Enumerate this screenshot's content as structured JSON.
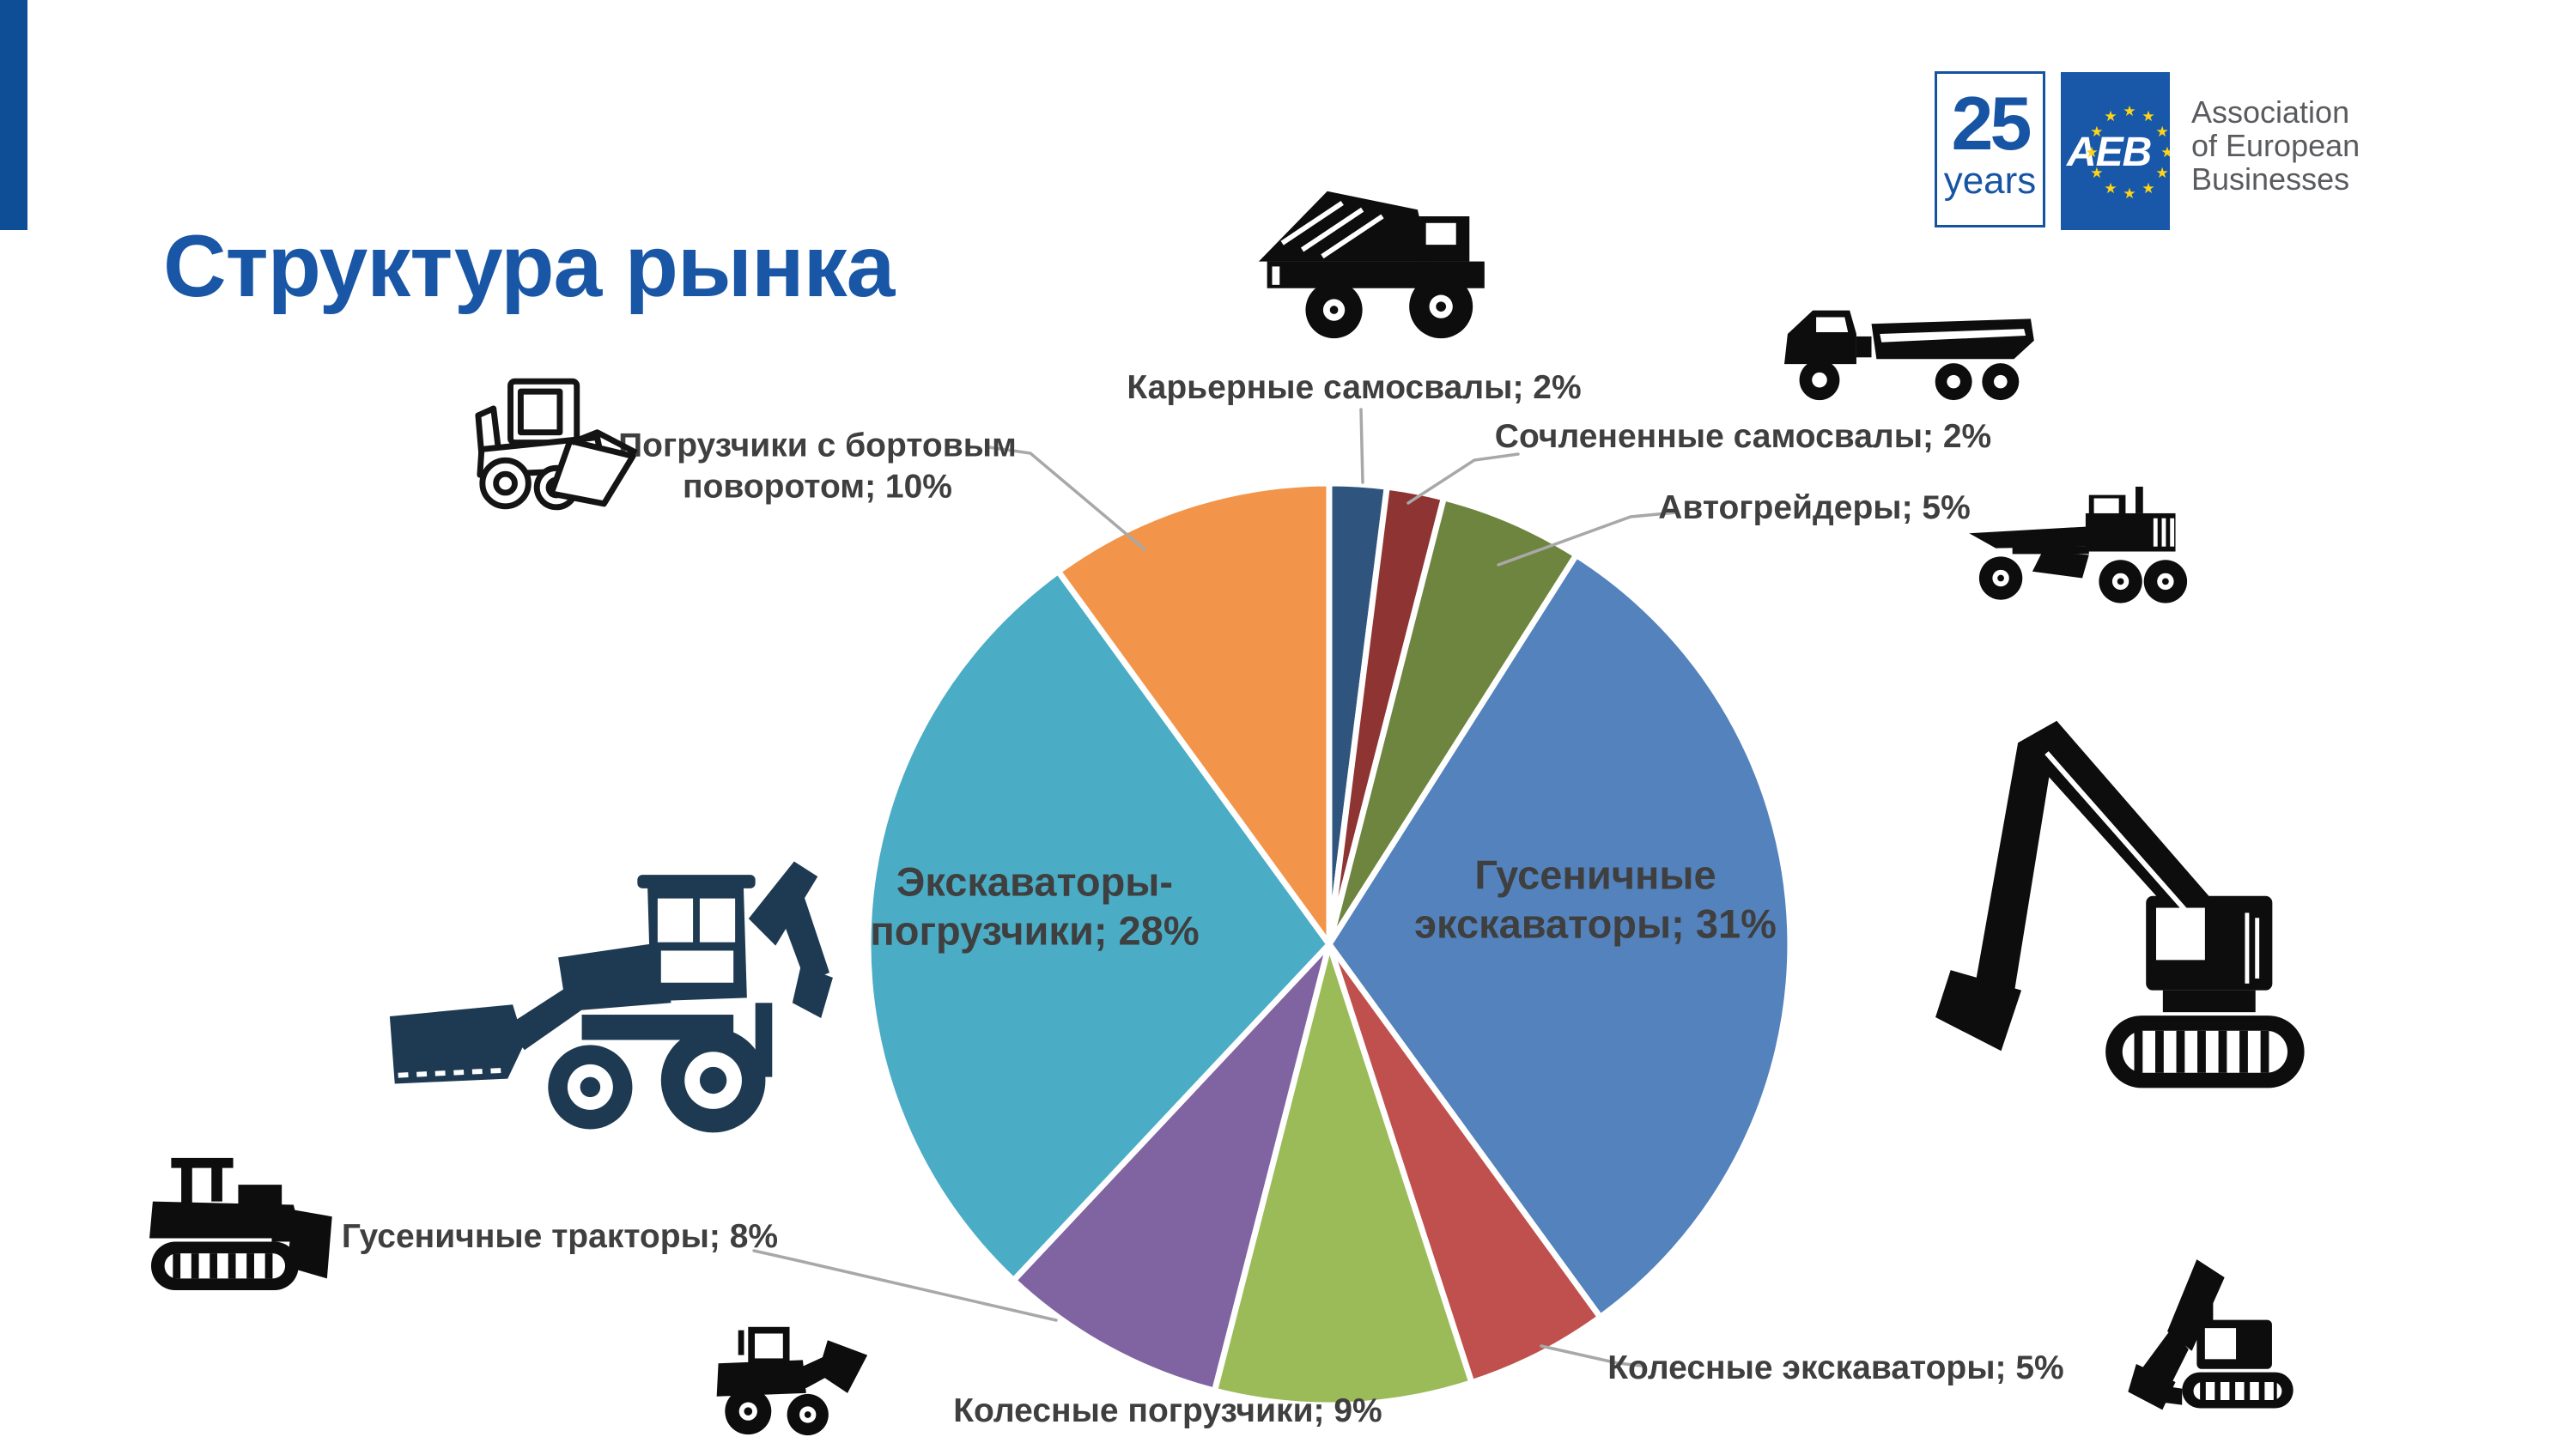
{
  "page": {
    "title": "Структура рынка"
  },
  "logos": {
    "years_badge": {
      "number": "25",
      "label": "years"
    },
    "aeb_badge": {
      "text": "AEB",
      "star_count": 12,
      "star_color": "#FFD417",
      "background": "#1958A8"
    },
    "org": {
      "lines": [
        "Association",
        "of European",
        "Businesses"
      ]
    }
  },
  "colors": {
    "accent_bar": "#0D4E96",
    "title_text": "#1956A6",
    "label_text": "#3F3F3F",
    "leader_line": "#A8A8A8",
    "pie_border": "#FFFFFF",
    "silhouette_black": "#0D0D0D",
    "backhoe_navy": "#1E3A52"
  },
  "machine_icons": [
    "skid-steer-loader",
    "mining-dump-truck",
    "articulated-hauler",
    "motor-grader",
    "crawler-excavator",
    "compact-excavator",
    "wheel-loader",
    "crawler-dozer",
    "backhoe-loader"
  ],
  "chart_data": {
    "type": "pie",
    "title": "Структура рынка",
    "unit": "%",
    "total": 100,
    "rotation": "clockwise-from-12-oclock",
    "legend_position": "none",
    "categories": [
      "Карьерные самосвалы",
      "Сочлененные самосвалы",
      "Автогрейдеры",
      "Гусеничные экскаваторы",
      "Колесные экскаваторы",
      "Колесные погрузчики",
      "Гусеничные тракторы",
      "Экскаваторы-погрузчики",
      "Погрузчики с бортовым поворотом"
    ],
    "values": [
      2,
      2,
      5,
      31,
      5,
      9,
      8,
      28,
      10
    ],
    "series": [
      {
        "category": "Карьерные самосвалы",
        "value": 2,
        "color": "#2F557E",
        "label_lines": [
          "Карьерные самосвалы; 2%"
        ],
        "label_placement": "outside"
      },
      {
        "category": "Сочлененные самосвалы",
        "value": 2,
        "color": "#8E3432",
        "label_lines": [
          "Сочлененные самосвалы; 2%"
        ],
        "label_placement": "outside"
      },
      {
        "category": "Автогрейдеры",
        "value": 5,
        "color": "#6E8540",
        "label_lines": [
          "Автогрейдеры; 5%"
        ],
        "label_placement": "outside"
      },
      {
        "category": "Гусеничные экскаваторы",
        "value": 31,
        "color": "#5382BC",
        "label_lines": [
          "Гусеничные",
          "экскаваторы; 31%"
        ],
        "label_placement": "inside"
      },
      {
        "category": "Колесные экскаваторы",
        "value": 5,
        "color": "#C0504D",
        "label_lines": [
          "Колесные экскаваторы; 5%"
        ],
        "label_placement": "outside"
      },
      {
        "category": "Колесные погрузчики",
        "value": 9,
        "color": "#9BBB59",
        "label_lines": [
          "Колесные погрузчики; 9%"
        ],
        "label_placement": "outside"
      },
      {
        "category": "Гусеничные тракторы",
        "value": 8,
        "color": "#8064A2",
        "label_lines": [
          "Гусеничные тракторы; 8%"
        ],
        "label_placement": "outside"
      },
      {
        "category": "Экскаваторы-погрузчики",
        "value": 28,
        "color": "#4BACC6",
        "label_lines": [
          "Экскаваторы-",
          "погрузчики; 28%"
        ],
        "label_placement": "inside"
      },
      {
        "category": "Погрузчики с бортовым поворотом",
        "value": 10,
        "color": "#F2954A",
        "label_lines": [
          "Погрузчики с бортовым",
          "поворотом; 10%"
        ],
        "label_placement": "outside"
      }
    ]
  }
}
